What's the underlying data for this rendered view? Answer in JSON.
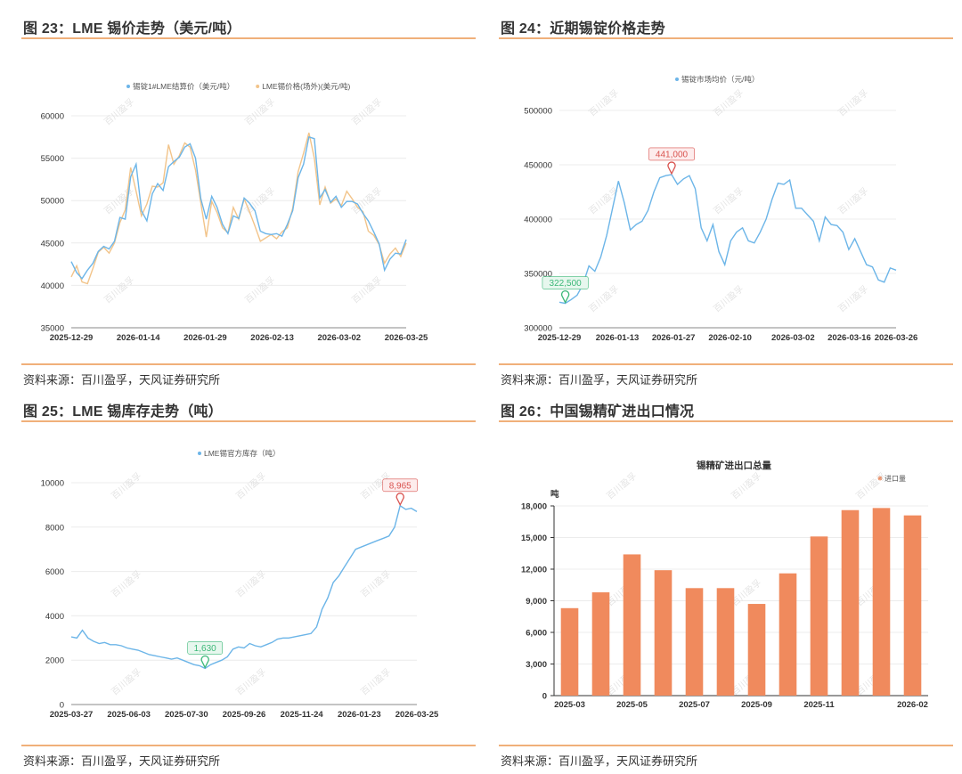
{
  "panels": [
    {
      "title": "图 23：LME 锡价走势（美元/吨）",
      "source": "资料来源：百川盈孚，天风证券研究所"
    },
    {
      "title": "图 24：近期锡锭价格走势",
      "source": "资料来源：百川盈孚，天风证券研究所"
    },
    {
      "title": "图 25：LME 锡库存走势（吨）",
      "source": "资料来源：百川盈孚，天风证券研究所"
    },
    {
      "title": "图 26：中国锡精矿进出口情况",
      "source": "资料来源：百川盈孚，天风证券研究所"
    }
  ],
  "watermark": "百川盈孚",
  "colors": {
    "blue": "#6cb5e8",
    "orange": "#f2c48a",
    "bar": "#f08a5d",
    "red_pin": "#d9534f",
    "green_pin": "#3cb878",
    "rule": "#f0b07a"
  },
  "chart_data": [
    {
      "type": "line",
      "legend": [
        "锡锭1#LME结算价（美元/吨）",
        "LME锡价格(场外)(美元/吨)"
      ],
      "ylim": [
        35000,
        60000
      ],
      "yticks": [
        35000,
        40000,
        45000,
        50000,
        55000,
        60000
      ],
      "xticks": [
        "2025-12-29",
        "2026-01-14",
        "2026-01-29",
        "2026-02-13",
        "2026-03-02",
        "2026-03-25"
      ],
      "series": [
        {
          "name": "锡锭1#LME结算价（美元/吨）",
          "values": [
            42800,
            41500,
            40800,
            41800,
            42600,
            44000,
            44600,
            44300,
            45200,
            48000,
            47800,
            52800,
            54300,
            48800,
            47600,
            50800,
            52000,
            51200,
            54000,
            54600,
            55100,
            56300,
            56700,
            55000,
            50200,
            47800,
            50500,
            49200,
            47200,
            46100,
            48200,
            47900,
            50300,
            49700,
            48800,
            46400,
            46100,
            46000,
            46100,
            45800,
            47200,
            48800,
            52700,
            54300,
            57500,
            57300,
            50300,
            51300,
            49800,
            50500,
            49200,
            49900,
            49900,
            49600,
            48500,
            47600,
            46300,
            44900,
            41800,
            43100,
            43800,
            43700,
            45400
          ]
        },
        {
          "name": "LME锡价格(场外)(美元/吨)",
          "values": [
            41000,
            42300,
            40400,
            40200,
            42000,
            43900,
            44500,
            43800,
            45000,
            47400,
            48900,
            53900,
            51100,
            48200,
            49600,
            51700,
            51600,
            52100,
            56600,
            54300,
            55300,
            56800,
            56300,
            53600,
            49700,
            45700,
            49900,
            48600,
            46800,
            46200,
            49200,
            47800,
            50200,
            48700,
            47000,
            45200,
            45600,
            46000,
            45500,
            46300,
            46800,
            49100,
            53400,
            55600,
            58000,
            55000,
            49500,
            51600,
            49700,
            50200,
            49400,
            51100,
            50200,
            49200,
            48700,
            46400,
            45900,
            44800,
            42600,
            43700,
            44400,
            43400,
            45000
          ]
        }
      ]
    },
    {
      "type": "line",
      "legend": [
        "锡锭市场均价（元/吨）"
      ],
      "ylim": [
        300000,
        500000
      ],
      "yticks": [
        300000,
        350000,
        400000,
        450000,
        500000
      ],
      "xticks": [
        "2025-12-29",
        "2026-01-13",
        "2026-01-27",
        "2026-02-10",
        "2026-03-02",
        "2026-03-16",
        "2026-03-26"
      ],
      "annotations": [
        {
          "label": "441,000",
          "index": 19,
          "kind": "max"
        },
        {
          "label": "322,500",
          "index": 1,
          "kind": "min"
        }
      ],
      "series": [
        {
          "name": "锡锭市场均价（元/吨）",
          "values": [
            323500,
            322500,
            326000,
            330000,
            340000,
            357000,
            352000,
            365000,
            385000,
            410000,
            435000,
            415000,
            390000,
            395000,
            398000,
            408000,
            425000,
            438000,
            440000,
            441000,
            432000,
            437000,
            440000,
            428000,
            392000,
            380000,
            395000,
            370000,
            358000,
            380000,
            388000,
            392000,
            380000,
            378000,
            388000,
            400000,
            418000,
            433000,
            432000,
            436000,
            410000,
            410000,
            404000,
            398000,
            380000,
            402000,
            395000,
            394000,
            388000,
            372000,
            382000,
            370000,
            358000,
            356000,
            344000,
            342000,
            355000,
            353000
          ]
        }
      ]
    },
    {
      "type": "line",
      "legend": [
        "LME锡官方库存（吨）"
      ],
      "ylim": [
        0,
        10000
      ],
      "yticks": [
        0,
        2000,
        4000,
        6000,
        8000,
        10000
      ],
      "xticks": [
        "2025-03-27",
        "2025-06-03",
        "2025-07-30",
        "2025-09-26",
        "2025-11-24",
        "2026-01-23",
        "2026-03-25"
      ],
      "annotations": [
        {
          "label": "8,965",
          "index": 59,
          "kind": "max"
        },
        {
          "label": "1,630",
          "index": 24,
          "kind": "min"
        }
      ],
      "series": [
        {
          "name": "LME锡官方库存（吨）",
          "values": [
            3050,
            3000,
            3350,
            3000,
            2850,
            2750,
            2800,
            2700,
            2700,
            2650,
            2550,
            2500,
            2450,
            2350,
            2250,
            2200,
            2150,
            2100,
            2050,
            2100,
            2000,
            1900,
            1800,
            1750,
            1630,
            1800,
            1900,
            2000,
            2150,
            2500,
            2600,
            2550,
            2750,
            2650,
            2600,
            2700,
            2800,
            2950,
            3000,
            3000,
            3050,
            3100,
            3150,
            3200,
            3500,
            4300,
            4800,
            5500,
            5800,
            6200,
            6600,
            7000,
            7100,
            7200,
            7300,
            7400,
            7500,
            7600,
            8000,
            8965,
            8800,
            8850,
            8700
          ]
        }
      ]
    },
    {
      "type": "bar",
      "title": "锡精矿进出口总量",
      "ylabel": "吨",
      "legend": [
        "进口量"
      ],
      "ylim": [
        0,
        18000
      ],
      "yticks": [
        "0",
        "3,000",
        "6,000",
        "9,000",
        "12,000",
        "15,000",
        "18,000"
      ],
      "categories": [
        "2025-03",
        "2025-04",
        "2025-05",
        "2025-06",
        "2025-07",
        "2025-08",
        "2025-09",
        "2025-10",
        "2025-11",
        "2025-12",
        "2026-01",
        "2026-02"
      ],
      "xticks": [
        "2025-03",
        "2025-05",
        "2025-07",
        "2025-09",
        "2025-11",
        "2026-02"
      ],
      "series": [
        {
          "name": "进口量",
          "values": [
            8300,
            9800,
            13400,
            11900,
            10200,
            10200,
            8700,
            11600,
            15100,
            17600,
            17800,
            17100
          ]
        }
      ]
    }
  ]
}
